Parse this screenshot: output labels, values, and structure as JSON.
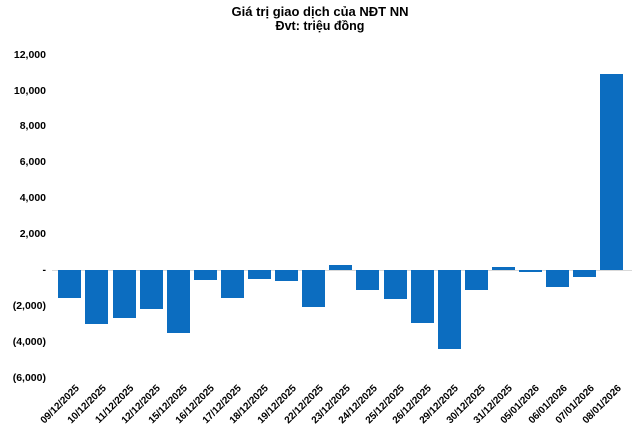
{
  "chart_data": {
    "type": "bar",
    "title": "Giá trị giao dịch của NĐT NN",
    "subtitle": "Đvt: triệu đồng",
    "categories": [
      "09/12/2025",
      "10/12/2025",
      "11/12/2025",
      "12/12/2025",
      "15/12/2025",
      "16/12/2025",
      "17/12/2025",
      "18/12/2025",
      "19/12/2025",
      "22/12/2025",
      "23/12/2025",
      "24/12/2025",
      "25/12/2025",
      "26/12/2025",
      "29/12/2025",
      "30/12/2025",
      "31/12/2025",
      "05/01/2026",
      "06/01/2026",
      "07/01/2026",
      "08/01/2026"
    ],
    "values": [
      -1570,
      -2980,
      -2650,
      -2190,
      -3500,
      -550,
      -1570,
      -490,
      -600,
      -2040,
      300,
      -1100,
      -1600,
      -2970,
      -4410,
      -1100,
      170,
      -130,
      -950,
      -390,
      10900
    ],
    "ylim": [
      -6000,
      12000
    ],
    "ytick_step": 2000,
    "ytick_labels": [
      "12,000",
      "10,000",
      "8,000",
      "6,000",
      "4,000",
      "2,000",
      "-",
      "(2,000)",
      "(4,000)",
      "(6,000)"
    ],
    "xlabel": "",
    "ylabel": "",
    "grid": false,
    "legend_position": "none",
    "bar_color": "#0C6DC0",
    "zero_line_color": "#D9D9D9",
    "text_color": "#000000"
  }
}
